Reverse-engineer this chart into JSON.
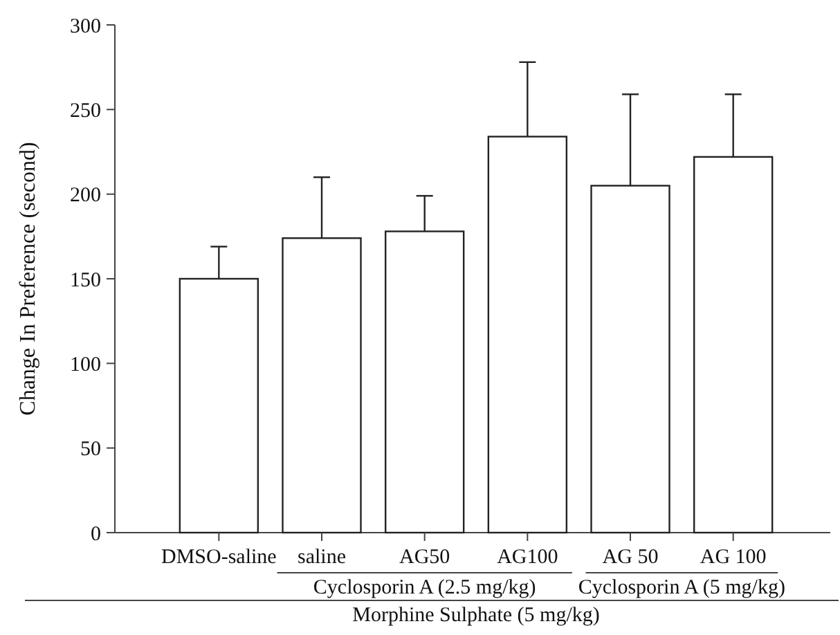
{
  "chart_data": {
    "type": "bar",
    "ylabel": "Change In Preference (second)",
    "categories": [
      "DMSO-saline",
      "saline",
      "AG50",
      "AG100",
      "AG 50",
      "AG 100"
    ],
    "values": [
      150,
      174,
      178,
      234,
      205,
      222
    ],
    "errors": [
      [
        150,
        169
      ],
      [
        174,
        210
      ],
      [
        178,
        199
      ],
      [
        234,
        278
      ],
      [
        205,
        259
      ],
      [
        222,
        259
      ]
    ],
    "color": "#ffffff",
    "ylim": [
      0,
      300
    ],
    "yticks": [
      0,
      50,
      100,
      150,
      200,
      250,
      300
    ],
    "annotations": [
      "Cyclosporin A (2.5 mg/kg)",
      "Cyclosporin A (5 mg/kg)",
      "Morphine Sulphate (5 mg/kg)"
    ]
  }
}
